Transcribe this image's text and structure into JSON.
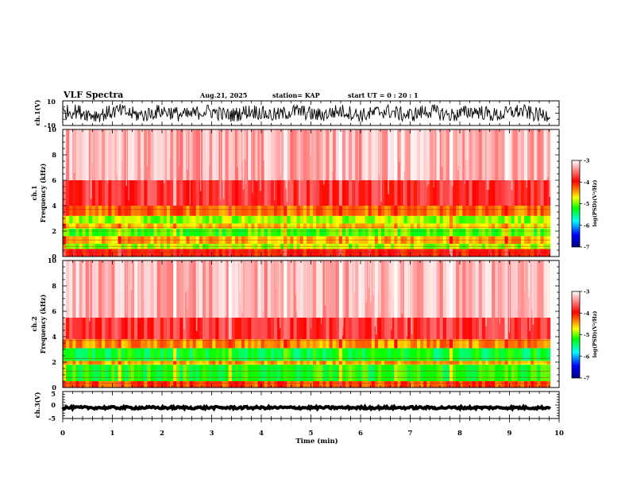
{
  "header": {
    "title": "VLF Spectra",
    "date": "Aug.21, 2025",
    "station": "station= KAP",
    "start": "start  UT =   0 : 20 : 1"
  },
  "chart_data": {
    "type": "heatmap",
    "x_axis": {
      "label": "Time (min)",
      "range": [
        0,
        10
      ],
      "ticks": [
        "0",
        "1",
        "2",
        "3",
        "4",
        "5",
        "6",
        "7",
        "8",
        "9",
        "10"
      ],
      "data_end": 9.82
    },
    "panels": [
      {
        "name": "ch1-waveform",
        "type": "line",
        "ylabel": "ch.1(V)",
        "ylim": [
          -10,
          10
        ],
        "yticks": [
          "10",
          "-10"
        ],
        "signal": "noise, amplitude about ±6 V"
      },
      {
        "name": "ch1-spectrogram",
        "type": "heatmap",
        "ylabel_top": "ch.1",
        "ylabel": "Frequency (kHz)",
        "ylim": [
          0,
          10
        ],
        "yticks": [
          "0",
          "2",
          "4",
          "6",
          "8",
          "10"
        ],
        "bands": [
          {
            "from_khz": 0.0,
            "to_khz": 0.6,
            "level": -4.0
          },
          {
            "from_khz": 0.6,
            "to_khz": 1.0,
            "level": -4.9
          },
          {
            "from_khz": 1.0,
            "to_khz": 1.6,
            "level": -4.5
          },
          {
            "from_khz": 1.6,
            "to_khz": 2.2,
            "level": -5.1
          },
          {
            "from_khz": 2.2,
            "to_khz": 2.6,
            "level": -4.6
          },
          {
            "from_khz": 2.6,
            "to_khz": 3.2,
            "level": -4.9
          },
          {
            "from_khz": 3.2,
            "to_khz": 4.0,
            "level": -4.3
          },
          {
            "from_khz": 4.0,
            "to_khz": 6.0,
            "level": -3.8
          },
          {
            "from_khz": 6.0,
            "to_khz": 10.0,
            "level": -3.3
          }
        ],
        "colorbar": {
          "label": "log(PSD)(V²/Hz)",
          "range": [
            -7,
            -3
          ],
          "ticks": [
            "-3",
            "-4",
            "-5",
            "-6",
            "-7"
          ]
        }
      },
      {
        "name": "ch2-spectrogram",
        "type": "heatmap",
        "ylabel_top": "ch.2",
        "ylabel": "Frequency (kHz)",
        "ylim": [
          0,
          10
        ],
        "yticks": [
          "0",
          "2",
          "4",
          "6",
          "8",
          "10"
        ],
        "bands": [
          {
            "from_khz": 0.0,
            "to_khz": 0.5,
            "level": -4.2
          },
          {
            "from_khz": 0.5,
            "to_khz": 1.8,
            "level": -5.2
          },
          {
            "from_khz": 1.8,
            "to_khz": 2.1,
            "level": -4.5
          },
          {
            "from_khz": 2.1,
            "to_khz": 3.1,
            "level": -5.3
          },
          {
            "from_khz": 3.1,
            "to_khz": 3.8,
            "level": -4.4
          },
          {
            "from_khz": 3.8,
            "to_khz": 5.5,
            "level": -3.8
          },
          {
            "from_khz": 5.5,
            "to_khz": 10.0,
            "level": -3.3
          }
        ],
        "colorbar": {
          "label": "log(PSD)(V²/Hz)",
          "range": [
            -7,
            -3
          ],
          "ticks": [
            "-3",
            "-4",
            "-5",
            "-6",
            "-7"
          ]
        }
      },
      {
        "name": "ch3-waveform",
        "type": "line",
        "ylabel": "ch.3(V)",
        "ylim": [
          -5,
          5
        ],
        "yticks": [
          "5",
          "0",
          "-5"
        ],
        "signal": "near-constant around -1 V"
      }
    ],
    "colormap": [
      "#000080",
      "#0000ff",
      "#00ffff",
      "#00ff00",
      "#ffff00",
      "#ff8000",
      "#ff0000",
      "#ffffff"
    ]
  }
}
